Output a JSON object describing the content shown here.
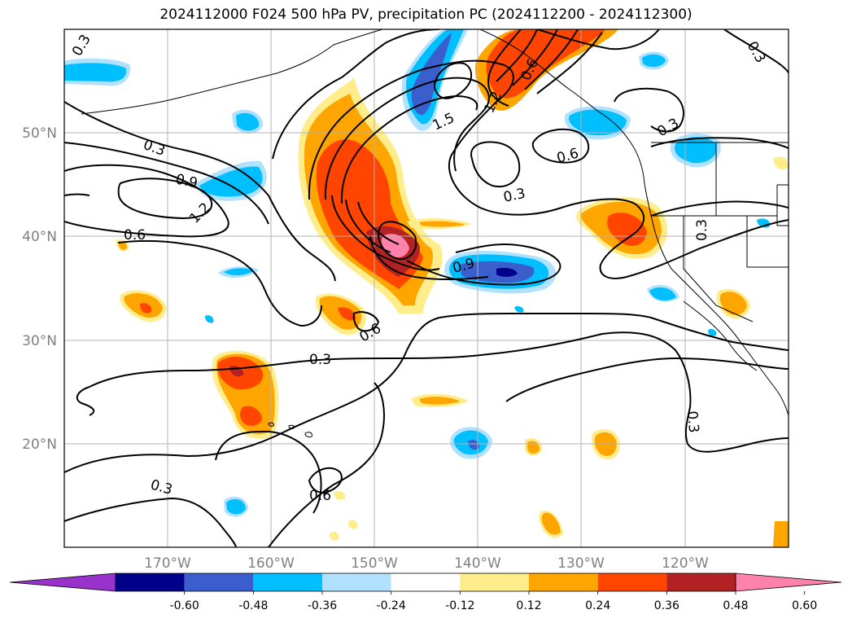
{
  "chart_data": {
    "type": "contour map",
    "title": "2024112000 F024 500 hPa PV, precipitation PC (2024112200 - 2024112300)",
    "x_ticks": [
      "170°W",
      "160°W",
      "150°W",
      "140°W",
      "130°W",
      "120°W"
    ],
    "y_ticks": [
      "50°N",
      "40°N",
      "30°N",
      "20°N"
    ],
    "extent": {
      "lon": [
        -180,
        -110
      ],
      "lat": [
        10,
        60
      ]
    },
    "grid": true,
    "contour_variable": "500 hPa PV",
    "contour_labels": [
      "0.3",
      "0.3",
      "0.9",
      "1.2",
      "0.6",
      "1.5",
      "1.2",
      "0.6",
      "0.3",
      "0.3",
      "0.6",
      "0.3",
      "0.9",
      "0.3",
      "0.6",
      "0.3",
      "0.3",
      "0.6",
      "0.3"
    ],
    "colorbar": {
      "levels": [
        "-0.60",
        "-0.48",
        "-0.36",
        "-0.24",
        "-0.12",
        "0.12",
        "0.24",
        "0.36",
        "0.48",
        "0.60"
      ],
      "colors": [
        "#9932cc",
        "#00008b",
        "#3a5fcd",
        "#00bfff",
        "#b0e2ff",
        "#ffffff",
        "#ffec8b",
        "#ffa500",
        "#ff4500",
        "#b22222",
        "#ff82ab"
      ],
      "extend": "both"
    }
  }
}
